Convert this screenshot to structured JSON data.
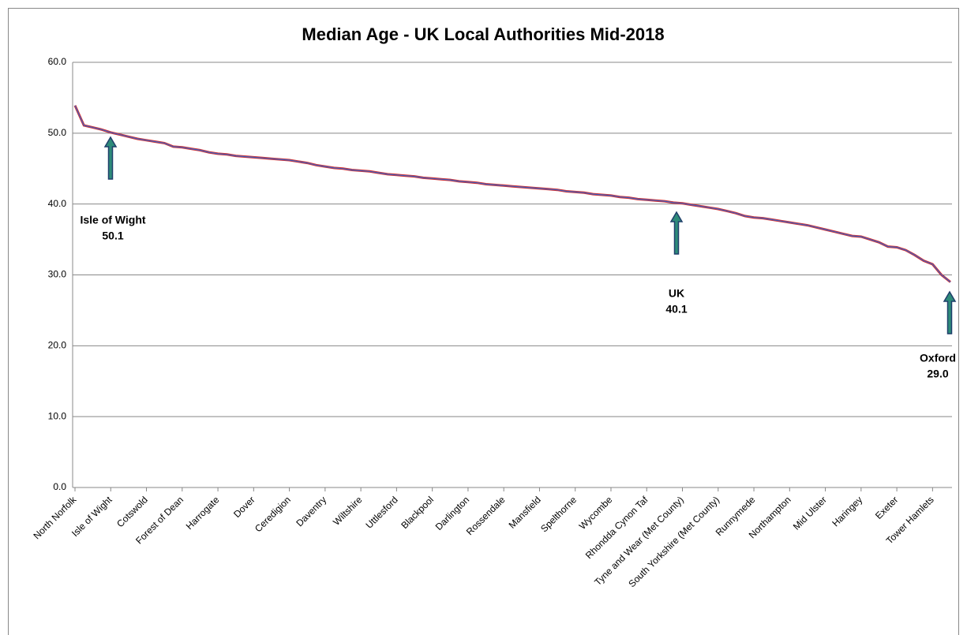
{
  "chart_data": {
    "type": "line",
    "title": "Median Age - UK Local Authorities Mid-2018",
    "categories": [
      "North Norfolk",
      null,
      null,
      null,
      "Isle of Wight",
      null,
      null,
      null,
      "Cotswold",
      null,
      null,
      null,
      "Forest of Dean",
      null,
      null,
      null,
      "Harrogate",
      null,
      null,
      null,
      "Dover",
      null,
      null,
      null,
      "Ceredigion",
      null,
      null,
      null,
      "Daventry",
      null,
      null,
      null,
      "Wiltshire",
      null,
      null,
      null,
      "Uttlesford",
      null,
      null,
      null,
      "Blackpool",
      null,
      null,
      null,
      "Darlington",
      null,
      null,
      null,
      "Rossendale",
      null,
      null,
      null,
      "Mansfield",
      null,
      null,
      null,
      "Spelthorne",
      null,
      null,
      null,
      "Wycombe",
      null,
      null,
      null,
      "Rhondda Cynon Taf",
      null,
      null,
      null,
      "Tyne and Wear (Met County)",
      null,
      null,
      null,
      "South Yorkshire (Met County)",
      null,
      null,
      null,
      "Runnymede",
      null,
      null,
      null,
      "Northampton",
      null,
      null,
      null,
      "Mid Ulster",
      null,
      null,
      null,
      "Haringey",
      null,
      null,
      null,
      "Exeter",
      null,
      null,
      null,
      "Tower Hamlets",
      null,
      null
    ],
    "series": [
      {
        "name": "Median Age",
        "color": "#d42a2a",
        "values": [
          53.9,
          51.1,
          50.8,
          50.5,
          50.1,
          49.8,
          49.5,
          49.2,
          49.0,
          48.8,
          48.6,
          48.1,
          48.0,
          47.8,
          47.6,
          47.3,
          47.1,
          47.0,
          46.8,
          46.7,
          46.6,
          46.5,
          46.4,
          46.3,
          46.2,
          46.0,
          45.8,
          45.5,
          45.3,
          45.1,
          45.0,
          44.8,
          44.7,
          44.6,
          44.4,
          44.2,
          44.1,
          44.0,
          43.9,
          43.7,
          43.6,
          43.5,
          43.4,
          43.2,
          43.1,
          43.0,
          42.8,
          42.7,
          42.6,
          42.5,
          42.4,
          42.3,
          42.2,
          42.1,
          42.0,
          41.8,
          41.7,
          41.6,
          41.4,
          41.3,
          41.2,
          41.0,
          40.9,
          40.7,
          40.6,
          40.5,
          40.4,
          40.2,
          40.1,
          39.9,
          39.7,
          39.5,
          39.3,
          39.0,
          38.7,
          38.3,
          38.1,
          38.0,
          37.8,
          37.6,
          37.4,
          37.2,
          37.0,
          36.7,
          36.4,
          36.1,
          35.8,
          35.5,
          35.4,
          35.0,
          34.6,
          34.0,
          33.9,
          33.5,
          32.8,
          32.0,
          31.5,
          30.0,
          29.0
        ]
      }
    ],
    "ylim": [
      0,
      60
    ],
    "yticks": [
      {
        "value": 0,
        "label": "0.0"
      },
      {
        "value": 10,
        "label": "10.0"
      },
      {
        "value": 20,
        "label": "20.0"
      },
      {
        "value": 30,
        "label": "30.0"
      },
      {
        "value": 40,
        "label": "40.0"
      },
      {
        "value": 50,
        "label": "50.0"
      },
      {
        "value": 60,
        "label": "60.0"
      }
    ],
    "grid": true,
    "annotations": [
      {
        "text": [
          "Isle of Wight",
          "50.1"
        ]
      },
      {
        "text": [
          "UK",
          "40.1"
        ]
      },
      {
        "text": [
          "Oxford",
          "29.0"
        ]
      }
    ]
  }
}
